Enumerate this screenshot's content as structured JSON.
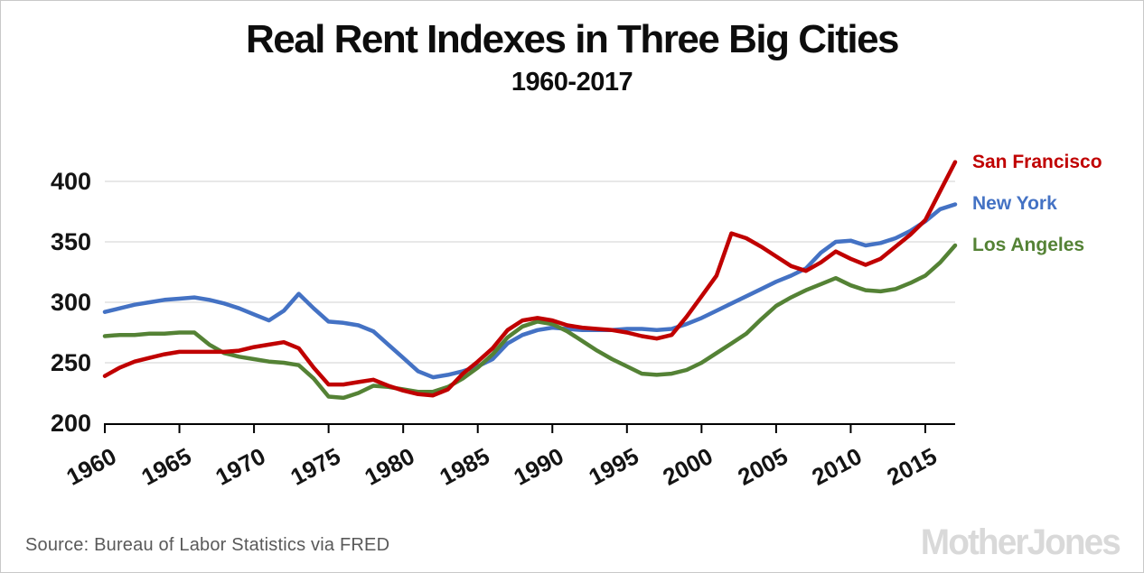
{
  "chart_data": {
    "type": "line",
    "title": "Real Rent Indexes in Three Big Cities",
    "subtitle": "1960-2017",
    "x_start": 1960,
    "x_end": 2017,
    "x": [
      1960,
      1961,
      1962,
      1963,
      1964,
      1965,
      1966,
      1967,
      1968,
      1969,
      1970,
      1971,
      1972,
      1973,
      1974,
      1975,
      1976,
      1977,
      1978,
      1979,
      1980,
      1981,
      1982,
      1983,
      1984,
      1985,
      1986,
      1987,
      1988,
      1989,
      1990,
      1991,
      1992,
      1993,
      1994,
      1995,
      1996,
      1997,
      1998,
      1999,
      2000,
      2001,
      2002,
      2003,
      2004,
      2005,
      2006,
      2007,
      2008,
      2009,
      2010,
      2011,
      2012,
      2013,
      2014,
      2015,
      2016,
      2017
    ],
    "series": [
      {
        "name": "San Francisco",
        "color": "#c00000",
        "values": [
          239,
          246,
          251,
          254,
          257,
          259,
          259,
          259,
          259,
          260,
          263,
          265,
          267,
          262,
          246,
          232,
          232,
          234,
          236,
          231,
          227,
          224,
          223,
          228,
          241,
          251,
          262,
          277,
          285,
          287,
          285,
          281,
          279,
          278,
          277,
          275,
          272,
          270,
          273,
          288,
          305,
          322,
          357,
          353,
          346,
          338,
          330,
          326,
          333,
          342,
          336,
          331,
          336,
          346,
          356,
          368,
          392,
          416
        ]
      },
      {
        "name": "New York",
        "color": "#4472c4",
        "values": [
          292,
          295,
          298,
          300,
          302,
          303,
          304,
          302,
          299,
          295,
          290,
          285,
          293,
          307,
          295,
          284,
          283,
          281,
          276,
          265,
          254,
          243,
          238,
          240,
          243,
          247,
          253,
          266,
          273,
          277,
          279,
          278,
          277,
          277,
          277,
          278,
          278,
          277,
          278,
          282,
          287,
          293,
          299,
          305,
          311,
          317,
          322,
          328,
          341,
          350,
          351,
          347,
          349,
          353,
          359,
          367,
          377,
          381
        ]
      },
      {
        "name": "Los Angeles",
        "color": "#548235",
        "values": [
          272,
          273,
          273,
          274,
          274,
          275,
          275,
          265,
          258,
          255,
          253,
          251,
          250,
          248,
          237,
          222,
          221,
          225,
          231,
          230,
          228,
          226,
          226,
          230,
          237,
          246,
          257,
          271,
          280,
          284,
          282,
          276,
          268,
          260,
          253,
          247,
          241,
          240,
          241,
          244,
          250,
          258,
          266,
          274,
          286,
          297,
          304,
          310,
          315,
          320,
          314,
          310,
          309,
          311,
          316,
          322,
          333,
          347
        ]
      }
    ],
    "ylim": [
      200,
      400
    ],
    "yticks": [
      200,
      250,
      300,
      350,
      400
    ],
    "xticks": [
      1960,
      1965,
      1970,
      1975,
      1980,
      1985,
      1990,
      1995,
      2000,
      2005,
      2010,
      2015
    ],
    "grid": "horizontal",
    "gridline_color": "#d9d9d9",
    "axis_color": "#000000",
    "legend_position": "right"
  },
  "source": {
    "text": "Source: Bureau of Labor Statistics via FRED"
  },
  "branding": {
    "logo_text": "MotherJones"
  }
}
